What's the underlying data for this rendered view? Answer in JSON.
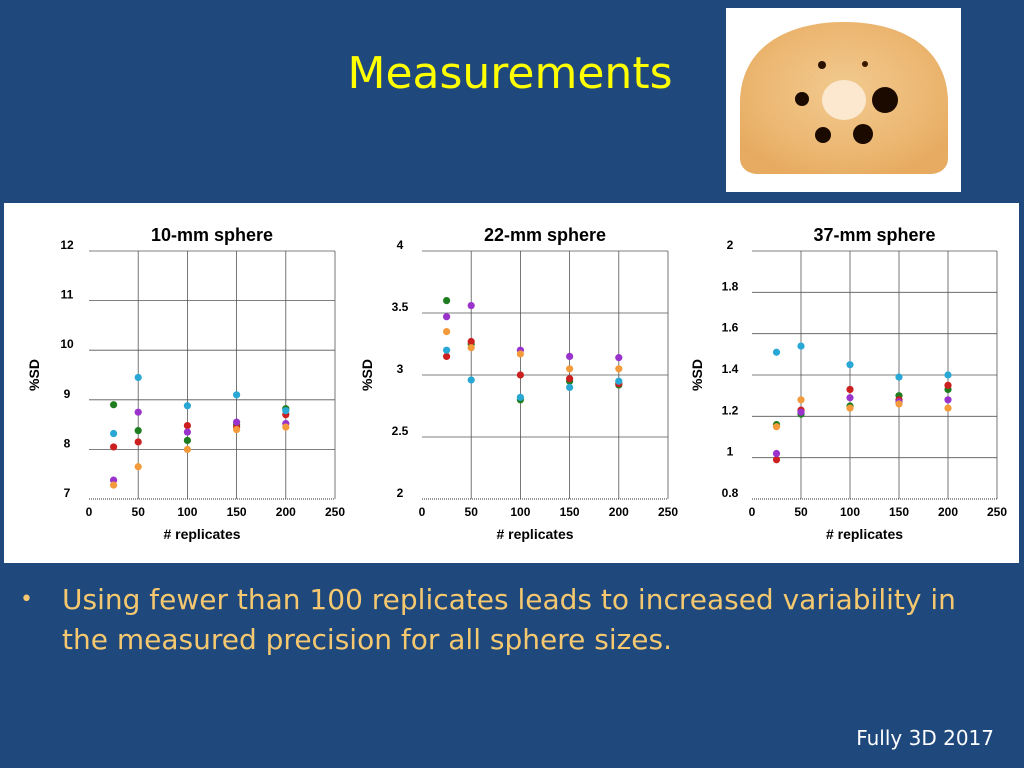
{
  "slide": {
    "title": "Measurements",
    "bullet": "Using fewer than 100 replicates leads to increased variability in the measured precision for all sphere sizes.",
    "footer": "Fully 3D 2017"
  },
  "colors": {
    "background": "#1f497d",
    "title": "#ffff00",
    "bullet": "#f5c86f",
    "series": [
      "#1e7d1e",
      "#cc1f1f",
      "#9933cc",
      "#29a8d6",
      "#f39a3b"
    ]
  },
  "chart_data": [
    {
      "type": "scatter",
      "title": "10-mm sphere",
      "xlabel": "# replicates",
      "ylabel": "%SD",
      "xlim": [
        0,
        250
      ],
      "ylim": [
        7,
        12
      ],
      "x_ticks": [
        0,
        50,
        100,
        150,
        200,
        250
      ],
      "y_ticks": [
        7,
        8,
        9,
        10,
        11,
        12
      ],
      "grid": true,
      "x": [
        25,
        50,
        100,
        150,
        200
      ],
      "series": [
        {
          "color": "#1e7d1e",
          "values": [
            8.9,
            8.38,
            8.18,
            8.5,
            8.82
          ]
        },
        {
          "color": "#cc1f1f",
          "values": [
            8.05,
            8.15,
            8.48,
            8.45,
            8.7
          ]
        },
        {
          "color": "#9933cc",
          "values": [
            7.38,
            8.75,
            8.35,
            8.55,
            8.52
          ]
        },
        {
          "color": "#29a8d6",
          "values": [
            8.32,
            9.45,
            8.88,
            9.1,
            8.78
          ]
        },
        {
          "color": "#f39a3b",
          "values": [
            7.28,
            7.65,
            8.0,
            8.4,
            8.45
          ]
        }
      ]
    },
    {
      "type": "scatter",
      "title": "22-mm sphere",
      "xlabel": "# replicates",
      "ylabel": "%SD",
      "xlim": [
        0,
        250
      ],
      "ylim": [
        2,
        4
      ],
      "x_ticks": [
        0,
        50,
        100,
        150,
        200,
        250
      ],
      "y_ticks": [
        2,
        2.5,
        3,
        3.5,
        4
      ],
      "grid": true,
      "x": [
        25,
        50,
        100,
        150,
        200
      ],
      "series": [
        {
          "color": "#1e7d1e",
          "values": [
            3.6,
            3.25,
            2.8,
            2.95,
            2.92
          ]
        },
        {
          "color": "#cc1f1f",
          "values": [
            3.15,
            3.27,
            3.0,
            2.97,
            2.93
          ]
        },
        {
          "color": "#9933cc",
          "values": [
            3.47,
            3.56,
            3.2,
            3.15,
            3.14
          ]
        },
        {
          "color": "#29a8d6",
          "values": [
            3.2,
            2.96,
            2.82,
            2.9,
            2.95
          ]
        },
        {
          "color": "#f39a3b",
          "values": [
            3.35,
            3.22,
            3.17,
            3.05,
            3.05
          ]
        }
      ]
    },
    {
      "type": "scatter",
      "title": "37-mm sphere",
      "xlabel": "# replicates",
      "ylabel": "%SD",
      "xlim": [
        0,
        250
      ],
      "ylim": [
        0.8,
        2
      ],
      "x_ticks": [
        0,
        50,
        100,
        150,
        200,
        250
      ],
      "y_ticks": [
        0.8,
        1,
        1.2,
        1.4,
        1.6,
        1.8,
        2
      ],
      "grid": true,
      "x": [
        25,
        50,
        100,
        150,
        200
      ],
      "series": [
        {
          "color": "#1e7d1e",
          "values": [
            1.16,
            1.21,
            1.25,
            1.3,
            1.33
          ]
        },
        {
          "color": "#cc1f1f",
          "values": [
            0.99,
            1.23,
            1.33,
            1.28,
            1.35
          ]
        },
        {
          "color": "#9933cc",
          "values": [
            1.02,
            1.22,
            1.29,
            1.27,
            1.28
          ]
        },
        {
          "color": "#29a8d6",
          "values": [
            1.51,
            1.54,
            1.45,
            1.39,
            1.4
          ]
        },
        {
          "color": "#f39a3b",
          "values": [
            1.15,
            1.28,
            1.24,
            1.26,
            1.24
          ]
        }
      ]
    }
  ]
}
